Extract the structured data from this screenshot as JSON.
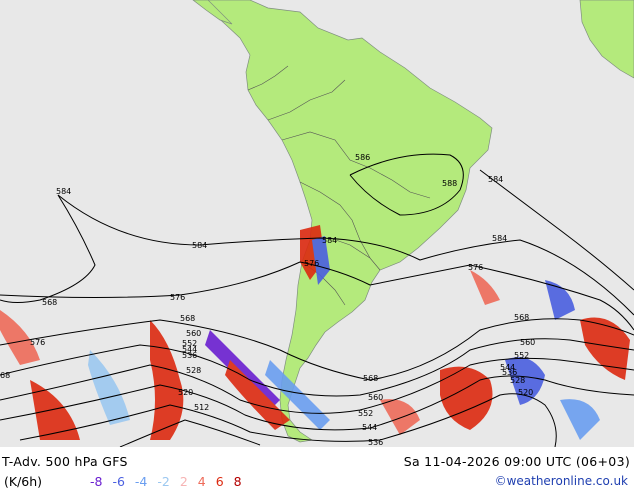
{
  "map": {
    "contour_labels": [
      "584",
      "586",
      "588",
      "584",
      "584",
      "584",
      "584",
      "576",
      "576",
      "576",
      "576",
      "568",
      "568",
      "568",
      "568",
      "560",
      "560",
      "560",
      "552",
      "552",
      "552",
      "544",
      "544",
      "544",
      "536",
      "536",
      "536",
      "528",
      "528",
      "520",
      "520",
      "512",
      "68"
    ],
    "colors": {
      "land": "#b4ea7c",
      "sea": "#e8e8e8",
      "positive": [
        "#f6b4b4",
        "#ee6b5a",
        "#dc2a10",
        "#b40000"
      ],
      "negative": [
        "#6a1fd0",
        "#4a5fe0",
        "#6a9ef0",
        "#9cc8f0"
      ]
    }
  },
  "footer": {
    "title": "T-Adv. 500 hPa  GFS",
    "units": "(K/6h)",
    "datetime": "Sa 11-04-2026 09:00 UTC (06+03)",
    "credit": "©weatheronline.co.uk"
  },
  "legend": {
    "values": [
      "-8",
      "-6",
      "-4",
      "-2",
      "2",
      "4",
      "6",
      "8"
    ],
    "colors": [
      "#6a1fd0",
      "#4a5fe0",
      "#6a9ef0",
      "#9cc8f0",
      "#f6b4b4",
      "#ee6b5a",
      "#dc2a10",
      "#b40000"
    ]
  }
}
